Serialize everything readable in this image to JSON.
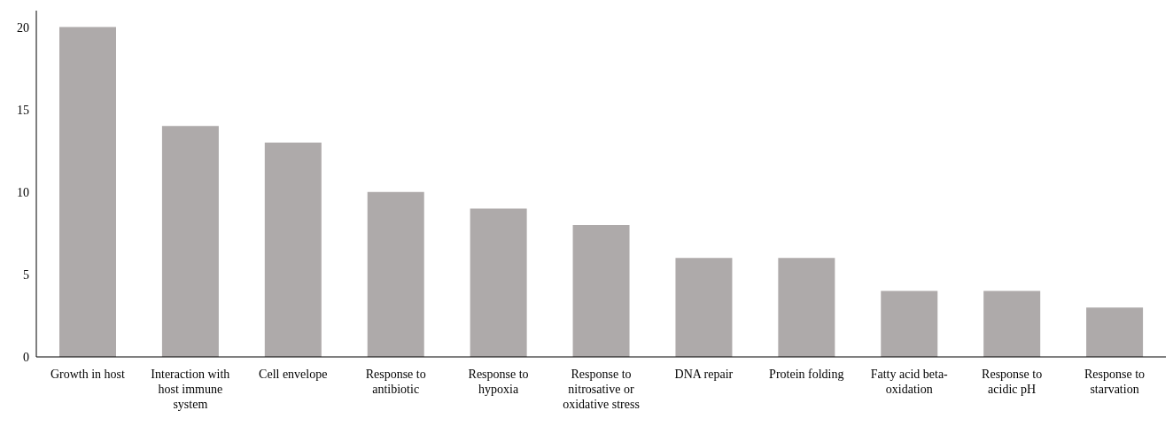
{
  "chart_data": {
    "type": "bar",
    "categories": [
      "Growth in host",
      "Interaction with host immune system",
      "Cell envelope",
      "Response to antibiotic",
      "Response to hypoxia",
      "Response to nitrosative or oxidative stress",
      "DNA repair",
      "Protein folding",
      "Fatty acid beta-oxidation",
      "Response to acidic pH",
      "Response to starvation"
    ],
    "values": [
      20,
      14,
      13,
      10,
      9,
      8,
      6,
      6,
      4,
      4,
      3
    ],
    "color": "#aeaaaa",
    "ylim": [
      0,
      21
    ],
    "yticks": [
      0,
      5,
      10,
      15,
      20
    ],
    "grid": false,
    "legend": false
  }
}
